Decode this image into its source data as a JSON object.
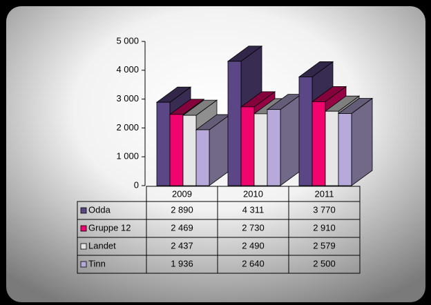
{
  "chart_data": {
    "type": "bar",
    "categories": [
      "2009",
      "2010",
      "2011"
    ],
    "series": [
      {
        "name": "Odda",
        "color": "#5b4785",
        "values": [
          2890,
          4311,
          3770
        ],
        "value_labels": [
          "2 890",
          "4 311",
          "3 770"
        ]
      },
      {
        "name": "Gruppe 12",
        "color": "#f0056e",
        "values": [
          2469,
          2730,
          2910
        ],
        "value_labels": [
          "2 469",
          "2 730",
          "2 910"
        ]
      },
      {
        "name": "Landet",
        "color": "#e6e6e6",
        "values": [
          2437,
          2490,
          2579
        ],
        "value_labels": [
          "2 437",
          "2 490",
          "2 579"
        ]
      },
      {
        "name": "Tinn",
        "color": "#b7a9d9",
        "values": [
          1936,
          2640,
          2500
        ],
        "value_labels": [
          "1 936",
          "2 640",
          "2 500"
        ]
      }
    ],
    "ylim": [
      0,
      5000
    ],
    "yticks": [
      0,
      {
        "value": 1000,
        "label": "1 000"
      },
      {
        "value": 2000,
        "label": "2 000"
      },
      {
        "value": 3000,
        "label": "3 000"
      },
      {
        "value": 4000,
        "label": "4 000"
      },
      {
        "value": 5000,
        "label": "5 000"
      }
    ]
  }
}
